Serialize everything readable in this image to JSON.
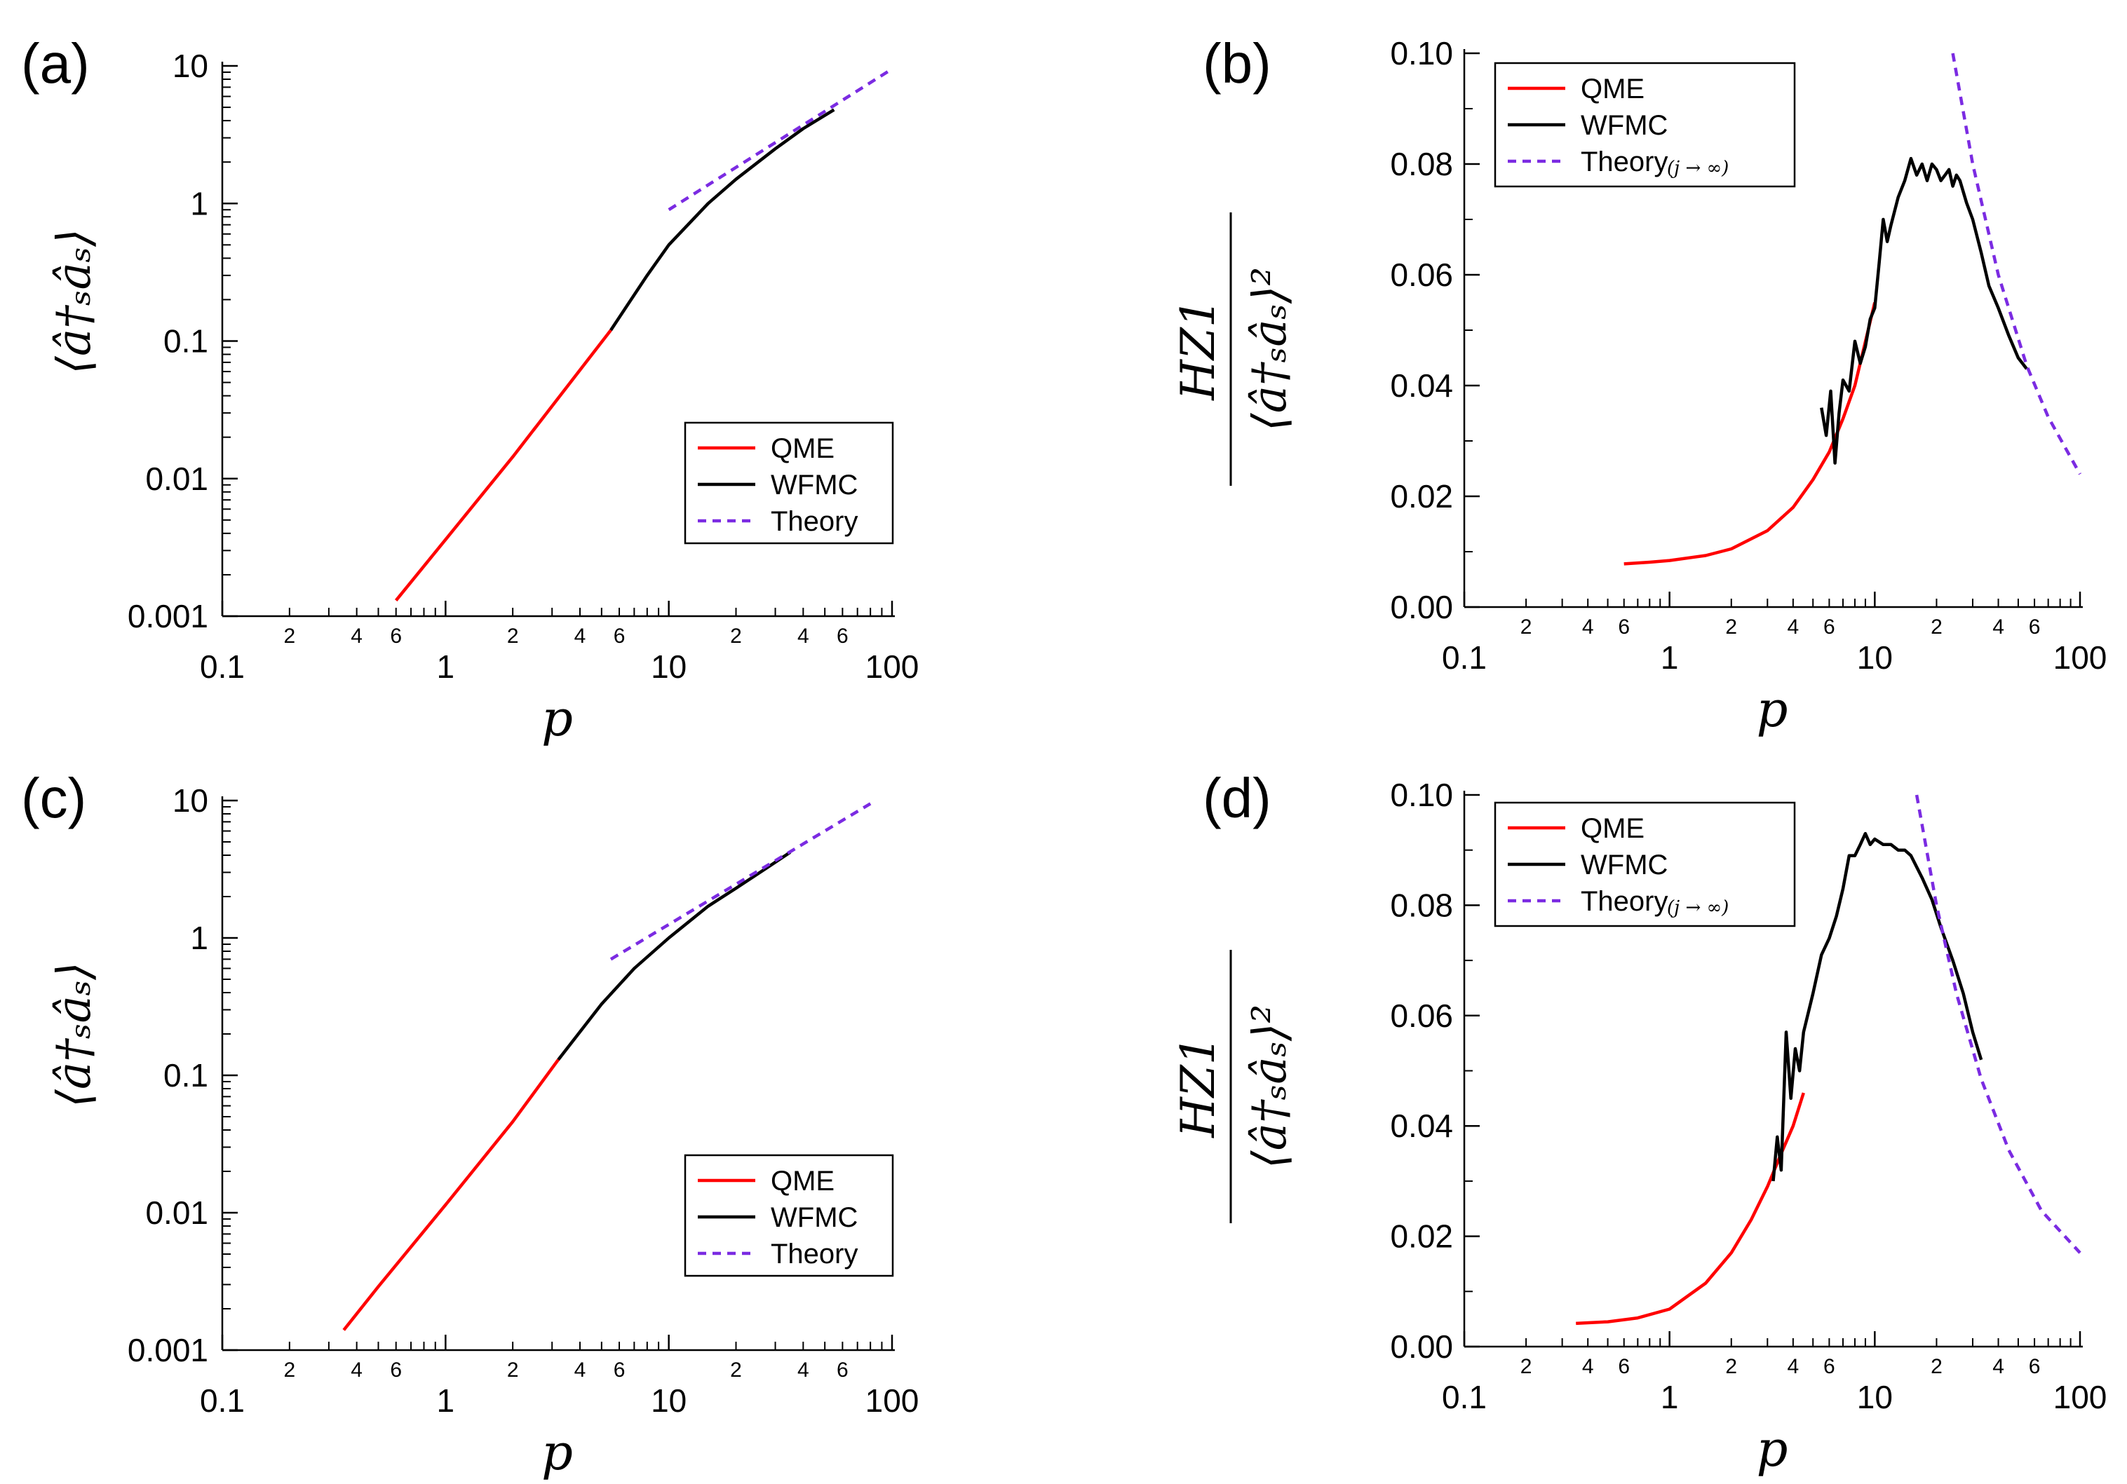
{
  "colors": {
    "qme": "#ff0000",
    "wfmc": "#000000",
    "theory": "#7b2be2"
  },
  "chart_data": [
    {
      "id": "a",
      "panel_label": "(a)",
      "type": "line",
      "xscale": "log",
      "yscale": "log",
      "xlim": [
        0.1,
        100
      ],
      "ylim": [
        0.001,
        10
      ],
      "xlabel": "p",
      "ylabel": {
        "text": "⟨â†ₛâₛ⟩"
      },
      "x_ticks": [
        "0.1",
        "1",
        "10",
        "100"
      ],
      "x_minor_labels": [
        "2",
        "4",
        "6"
      ],
      "y_ticks": [
        "0.001",
        "0.01",
        "0.1",
        "1",
        "10"
      ],
      "legend": {
        "position": "lower-right",
        "entries": [
          "QME",
          "WFMC",
          "Theory"
        ]
      },
      "series": [
        {
          "name": "QME",
          "style": "solid",
          "x": [
            0.6,
            1,
            2,
            5.5
          ],
          "y": [
            0.0013,
            0.0036,
            0.0144,
            0.12
          ]
        },
        {
          "name": "WFMC",
          "style": "solid",
          "x": [
            5.5,
            8,
            10,
            15,
            20,
            30,
            40,
            55
          ],
          "y": [
            0.12,
            0.3,
            0.5,
            1.0,
            1.5,
            2.5,
            3.5,
            4.8
          ]
        },
        {
          "name": "Theory",
          "style": "dashed",
          "x": [
            10,
            100
          ],
          "y": [
            0.9,
            9.5
          ]
        }
      ]
    },
    {
      "id": "b",
      "panel_label": "(b)",
      "type": "line",
      "xscale": "log",
      "yscale": "linear",
      "xlim": [
        0.1,
        100
      ],
      "ylim": [
        0,
        0.1
      ],
      "xlabel": "p",
      "ylabel": {
        "numerator": "HZ1",
        "denominator": "⟨â†ₛâₛ⟩²"
      },
      "x_ticks": [
        "0.1",
        "1",
        "10",
        "100"
      ],
      "x_minor_labels": [
        "2",
        "4",
        "6"
      ],
      "y_ticks": [
        "0.00",
        "0.02",
        "0.04",
        "0.06",
        "0.08",
        "0.10"
      ],
      "legend": {
        "position": "top-left",
        "entries": [
          "QME",
          "WFMC",
          "Theory"
        ],
        "theory_suffix": "(j → ∞)"
      },
      "series": [
        {
          "name": "QME",
          "style": "solid",
          "x": [
            0.6,
            0.8,
            1,
            1.5,
            2,
            3,
            4,
            5,
            6,
            7,
            8,
            10
          ],
          "y": [
            0.0078,
            0.0081,
            0.0084,
            0.0093,
            0.0105,
            0.0138,
            0.018,
            0.023,
            0.028,
            0.034,
            0.04,
            0.055
          ]
        },
        {
          "name": "WFMC",
          "style": "solid",
          "x": [
            5.5,
            5.8,
            6.1,
            6.4,
            6.7,
            7,
            7.5,
            8,
            8.5,
            9,
            9.5,
            10,
            10.5,
            11,
            11.5,
            12,
            13,
            14,
            15,
            16,
            17,
            18,
            19,
            20,
            21,
            22,
            23,
            24,
            25,
            26,
            28,
            30,
            33,
            36,
            40,
            45,
            50,
            55
          ],
          "y": [
            0.036,
            0.031,
            0.039,
            0.026,
            0.035,
            0.041,
            0.039,
            0.048,
            0.044,
            0.047,
            0.052,
            0.054,
            0.062,
            0.07,
            0.066,
            0.069,
            0.074,
            0.077,
            0.081,
            0.078,
            0.08,
            0.077,
            0.08,
            0.079,
            0.077,
            0.078,
            0.079,
            0.076,
            0.078,
            0.077,
            0.073,
            0.07,
            0.064,
            0.058,
            0.054,
            0.049,
            0.045,
            0.043
          ]
        },
        {
          "name": "Theory",
          "style": "dashed",
          "x": [
            24,
            30,
            40,
            55,
            70,
            100
          ],
          "y": [
            0.1,
            0.08,
            0.06,
            0.0436,
            0.0343,
            0.024
          ]
        }
      ]
    },
    {
      "id": "c",
      "panel_label": "(c)",
      "type": "line",
      "xscale": "log",
      "yscale": "log",
      "xlim": [
        0.1,
        100
      ],
      "ylim": [
        0.001,
        10
      ],
      "xlabel": "p",
      "ylabel": {
        "text": "⟨â†ₛâₛ⟩"
      },
      "x_ticks": [
        "0.1",
        "1",
        "10",
        "100"
      ],
      "x_minor_labels": [
        "2",
        "4",
        "6"
      ],
      "y_ticks": [
        "0.001",
        "0.01",
        "0.1",
        "1",
        "10"
      ],
      "legend": {
        "position": "lower-right",
        "entries": [
          "QME",
          "WFMC",
          "Theory"
        ]
      },
      "series": [
        {
          "name": "QME",
          "style": "solid",
          "x": [
            0.35,
            0.5,
            1,
            2,
            3.2
          ],
          "y": [
            0.0014,
            0.0029,
            0.0114,
            0.046,
            0.13
          ]
        },
        {
          "name": "WFMC",
          "style": "solid",
          "x": [
            3.2,
            5,
            7,
            10,
            15,
            20,
            28,
            35
          ],
          "y": [
            0.13,
            0.33,
            0.6,
            1.0,
            1.7,
            2.3,
            3.3,
            4.2
          ]
        },
        {
          "name": "Theory",
          "style": "dashed",
          "x": [
            5.5,
            80
          ],
          "y": [
            0.7,
            9.5
          ]
        }
      ]
    },
    {
      "id": "d",
      "panel_label": "(d)",
      "type": "line",
      "xscale": "log",
      "yscale": "linear",
      "xlim": [
        0.1,
        100
      ],
      "ylim": [
        0,
        0.1
      ],
      "xlabel": "p",
      "ylabel": {
        "numerator": "HZ1",
        "denominator": "⟨â†ₛâₛ⟩²"
      },
      "x_ticks": [
        "0.1",
        "1",
        "10",
        "100"
      ],
      "x_minor_labels": [
        "2",
        "4",
        "6"
      ],
      "y_ticks": [
        "0.00",
        "0.02",
        "0.04",
        "0.06",
        "0.08",
        "0.10"
      ],
      "legend": {
        "position": "top-left",
        "entries": [
          "QME",
          "WFMC",
          "Theory"
        ],
        "theory_suffix": "(j → ∞)"
      },
      "series": [
        {
          "name": "QME",
          "style": "solid",
          "x": [
            0.35,
            0.5,
            0.7,
            1,
            1.5,
            2,
            2.5,
            3,
            3.5,
            4,
            4.5
          ],
          "y": [
            0.0042,
            0.0045,
            0.0052,
            0.0068,
            0.0115,
            0.017,
            0.023,
            0.029,
            0.035,
            0.04,
            0.046
          ]
        },
        {
          "name": "WFMC",
          "style": "solid",
          "x": [
            3.2,
            3.35,
            3.5,
            3.7,
            3.9,
            4.1,
            4.3,
            4.5,
            5,
            5.5,
            6,
            6.5,
            7,
            7.5,
            8,
            8.5,
            9,
            9.5,
            10,
            11,
            12,
            13,
            14,
            15,
            17,
            19,
            21,
            24,
            27,
            30,
            33
          ],
          "y": [
            0.03,
            0.038,
            0.032,
            0.057,
            0.045,
            0.054,
            0.05,
            0.057,
            0.064,
            0.071,
            0.074,
            0.078,
            0.083,
            0.089,
            0.089,
            0.091,
            0.093,
            0.091,
            0.092,
            0.091,
            0.091,
            0.09,
            0.09,
            0.089,
            0.085,
            0.081,
            0.076,
            0.07,
            0.064,
            0.057,
            0.052
          ]
        },
        {
          "name": "Theory",
          "style": "dashed",
          "x": [
            16,
            20,
            25,
            33,
            45,
            65,
            100
          ],
          "y": [
            0.1,
            0.08,
            0.064,
            0.0485,
            0.0356,
            0.0246,
            0.017
          ]
        }
      ]
    }
  ]
}
